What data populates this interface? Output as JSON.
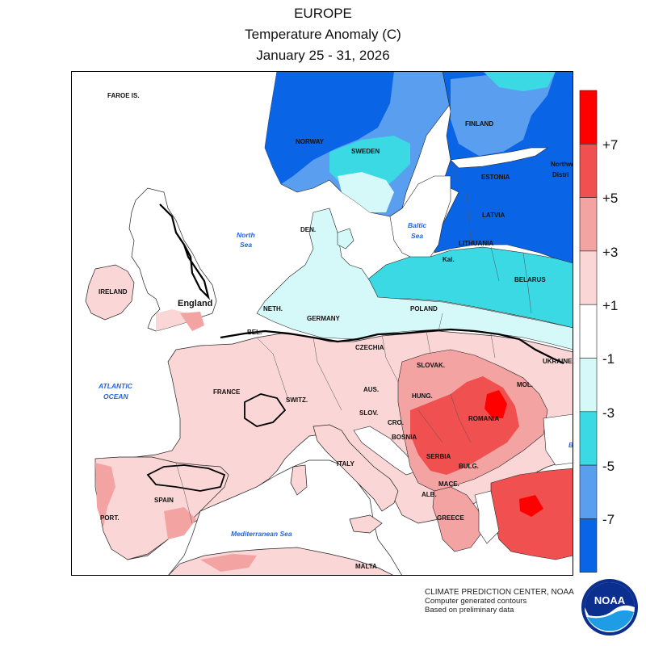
{
  "title": {
    "line1": "EUROPE",
    "line2": "Temperature Anomaly (C)",
    "line3": "January 25 - 31, 2026"
  },
  "legend": {
    "bins": [
      {
        "color": "#ff0000"
      },
      {
        "color": "#f0504f"
      },
      {
        "color": "#f4a3a3"
      },
      {
        "color": "#fbd6d6"
      },
      {
        "color": "#ffffff"
      },
      {
        "color": "#d5f8f8"
      },
      {
        "color": "#3ad9e3"
      },
      {
        "color": "#5a9eef"
      },
      {
        "color": "#0a64e6"
      }
    ],
    "labels": [
      "+7",
      "+5",
      "+3",
      "+1",
      "-1",
      "-3",
      "-5",
      "-7"
    ]
  },
  "map_labels": {
    "faroe": "FAROE IS.",
    "norway": "NORWAY",
    "sweden": "SWEDEN",
    "finland": "FINLAND",
    "estonia": "ESTONIA",
    "latvia": "LATVIA",
    "lithuania": "LITHUANIA",
    "kal": "Kal.",
    "belarus": "BELARUS",
    "ukraine": "UKRAINE",
    "mol": "MOL.",
    "northwest_1": "Northw",
    "northwest_2": "Distri",
    "den": "DEN.",
    "north_sea_1": "North",
    "north_sea_2": "Sea",
    "baltic_sea_1": "Baltic",
    "baltic_sea_2": "Sea",
    "ireland": "IRELAND",
    "england": "England",
    "neth": "NETH.",
    "germany": "GERMANY",
    "poland": "POLAND",
    "bel": "BEL.",
    "czechia": "CZECHIA",
    "slovak": "SLOVAK.",
    "aus": "AUS.",
    "hung": "HUNG.",
    "romania": "ROMANIA",
    "slov": "SLOV.",
    "cro": "CRO.",
    "bosnia": "BOSNIA",
    "serbia": "SERBIA",
    "bulg": "BULG.",
    "maced": "MACE.",
    "alb": "ALB.",
    "greece": "GREECE",
    "france": "FRANCE",
    "switz": "SWITZ.",
    "italy": "ITALY",
    "spain": "SPAIN",
    "port": "PORT.",
    "malta": "MALTA",
    "atlantic_1": "ATLANTIC",
    "atlantic_2": "OCEAN",
    "med_sea": "Mediterranean Sea",
    "black_sea_cut": "B"
  },
  "credits": {
    "line1": "CLIMATE PREDICTION CENTER, NOAA",
    "line2": "Computer generated contours",
    "line3": "Based on preliminary data"
  },
  "logo": {
    "text": "NOAA"
  }
}
